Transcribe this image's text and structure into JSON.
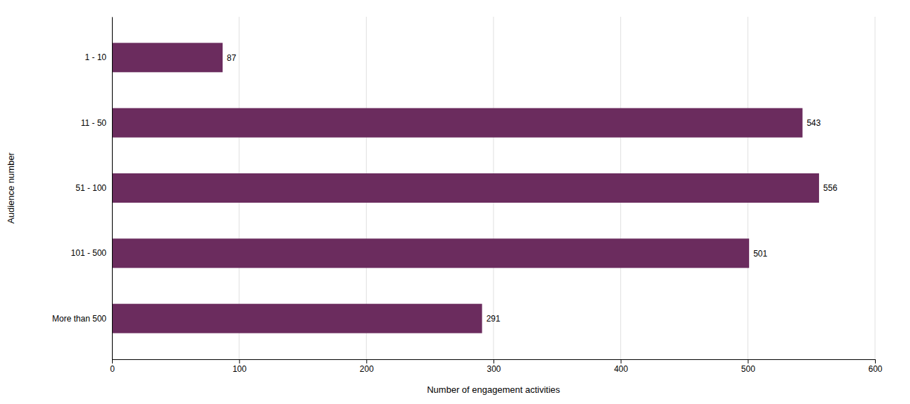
{
  "chart_data": {
    "type": "bar",
    "orientation": "horizontal",
    "categories": [
      "1 - 10",
      "11 - 50",
      "51 - 100",
      "101 - 500",
      "More than 500"
    ],
    "values": [
      87,
      543,
      556,
      501,
      291
    ],
    "color": "#6B2C5E",
    "xlabel": "Number of engagement activities",
    "ylabel": "Audience number",
    "xlim": [
      0,
      600
    ],
    "xticks": [
      0,
      100,
      200,
      300,
      400,
      500,
      600
    ],
    "grid": true,
    "data_labels": true
  }
}
